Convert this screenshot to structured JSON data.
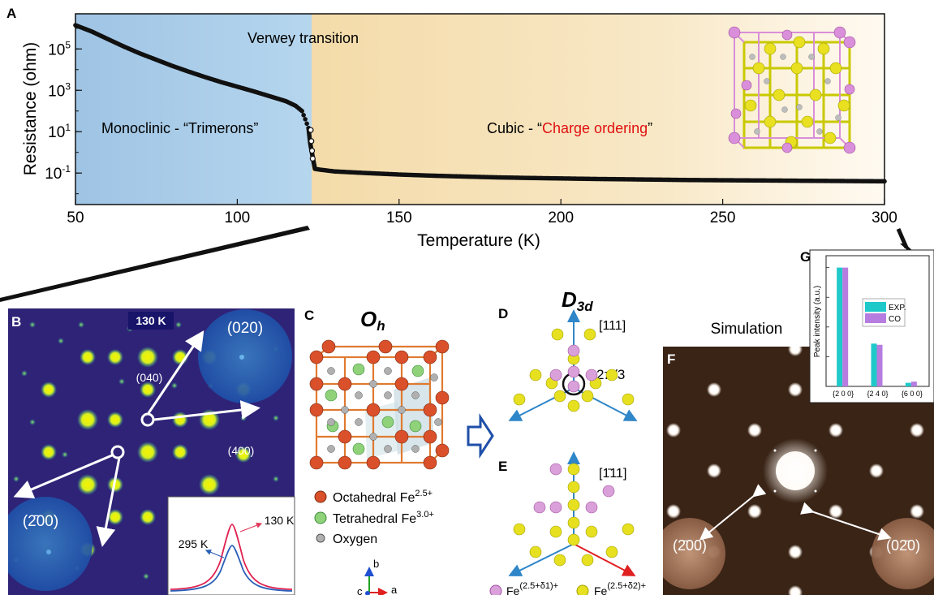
{
  "panels": {
    "a": "A",
    "b": "B",
    "c": "C",
    "d": "D",
    "e": "E",
    "f": "F",
    "g": "G"
  },
  "colors": {
    "monoclinic_bg": "#a9cbe6",
    "cubic_bg": "#f3d9a8",
    "charge_ordering_text": "#e01010",
    "oct_fe": "#d9502a",
    "tet_fe": "#8fd27a",
    "oxygen": "#a8a8a8",
    "fe_d1": "#d9a0d9",
    "fe_d2": "#e6e020",
    "exp": "#1fc9c9",
    "co": "#b77ce0"
  },
  "chart_data": [
    {
      "type": "scatter",
      "panel": "A",
      "xlabel": "Temperature (K)",
      "ylabel": "Resistance (ohm)",
      "xlim": [
        50,
        300
      ],
      "xticks": [
        50,
        100,
        150,
        200,
        250,
        300
      ],
      "yscale": "log",
      "ylim": [
        0.003,
        5000000
      ],
      "yticks": [
        {
          "v": 0.1,
          "label": "10^-1"
        },
        {
          "v": 10,
          "label": "10^1"
        },
        {
          "v": 1000,
          "label": "10^3"
        },
        {
          "v": 100000,
          "label": "10^5"
        }
      ],
      "annotations": {
        "transition": "Verwey transition",
        "monoclinic": "Monoclinic - “Trimerons”",
        "cubic_prefix": "Cubic - “",
        "cubic_highlight": "Charge ordering",
        "cubic_suffix": "”"
      },
      "series": [
        {
          "x": [
            50,
            55,
            60,
            65,
            70,
            75,
            80,
            85,
            90,
            95,
            100,
            105,
            110,
            115,
            118,
            120,
            121,
            122,
            122.5,
            123,
            123.5,
            124,
            125,
            130,
            140,
            150,
            160,
            170,
            180,
            190,
            200,
            210,
            220,
            230,
            240,
            250,
            260,
            270,
            280,
            290,
            300
          ],
          "y": [
            1400000,
            700000,
            300000,
            130000,
            60000,
            30000,
            15000,
            8000,
            4400,
            2500,
            1500,
            900,
            520,
            300,
            180,
            100,
            40,
            15,
            3,
            1.1,
            0.4,
            0.16,
            0.15,
            0.12,
            0.1,
            0.085,
            0.075,
            0.068,
            0.062,
            0.058,
            0.055,
            0.052,
            0.05,
            0.048,
            0.046,
            0.045,
            0.044,
            0.043,
            0.042,
            0.041,
            0.04
          ]
        }
      ]
    },
    {
      "type": "bar",
      "panel": "G",
      "ylabel": "Peak intensity (a.u.)",
      "categories": [
        "{2 0 0}",
        "{2 4 0}",
        "{6 0 0}"
      ],
      "ylim": [
        0,
        1.1
      ],
      "series": [
        {
          "name": "EXP.",
          "values": [
            1.0,
            0.36,
            0.03
          ]
        },
        {
          "name": "CO",
          "values": [
            1.0,
            0.35,
            0.04
          ]
        }
      ],
      "legend": "top-right"
    }
  ],
  "b": {
    "temp": "130 K",
    "spot_040": "(040)",
    "spot_400": "(400)",
    "circle_020": "(020)",
    "circle_200": "(2̄00)",
    "inset_hot": "130 K",
    "inset_cold": "295 K"
  },
  "c": {
    "title": "O",
    "title_sub": "h",
    "legend": [
      {
        "label": "Octahedral Fe",
        "sup": "2.5+"
      },
      {
        "label": "Tetrahedral Fe",
        "sup": "3.0+"
      },
      {
        "label": "Oxygen",
        "sup": ""
      }
    ],
    "axis_b": "b",
    "axis_c": "c",
    "axis_a": "a"
  },
  "d": {
    "title": "D",
    "title_sub": "3d",
    "dir_111": "[111]",
    "angle": "2π/3"
  },
  "e": {
    "dir_m111": "[1̄11]",
    "fe1": "Fe",
    "fe1_sup": "(2.5+δ1)+",
    "fe2": "Fe",
    "fe2_sup": "(2.5+δ2)+"
  },
  "f": {
    "title": "Simulation",
    "circle_200": "(2̄00)",
    "circle_020": "(02̄0)"
  }
}
